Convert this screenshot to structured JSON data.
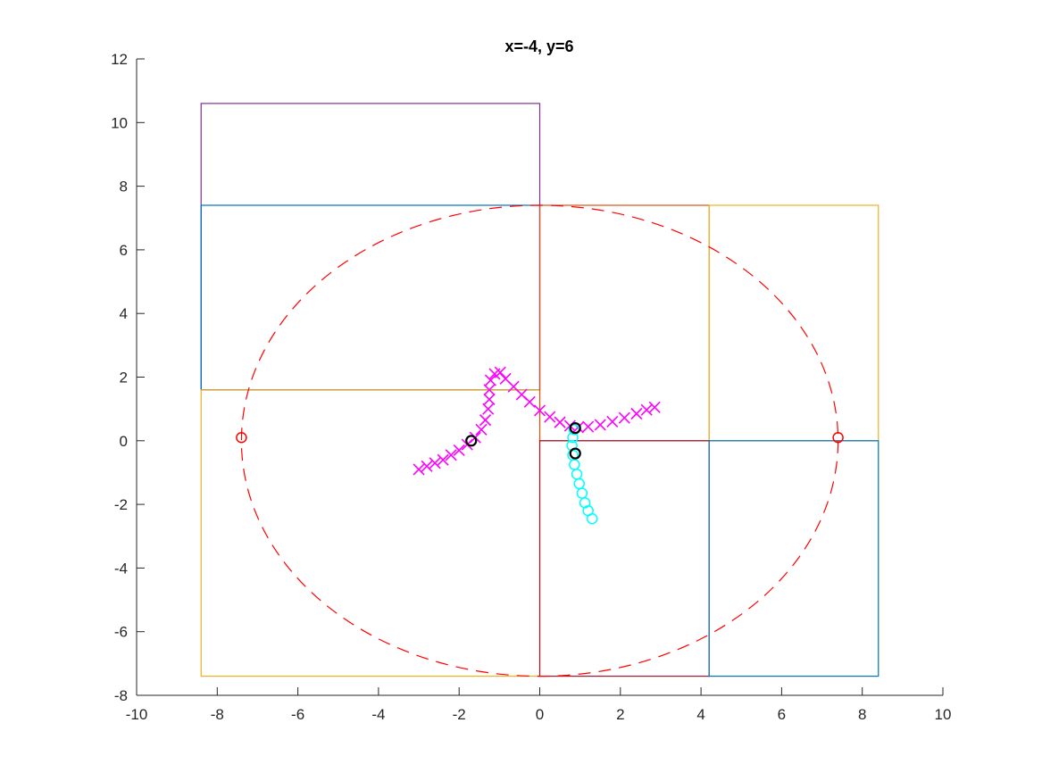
{
  "chart_data": {
    "type": "scatter",
    "title": "x=-4, y=6",
    "xlabel": "",
    "ylabel": "",
    "xlim": [
      -10,
      10
    ],
    "ylim": [
      -8,
      12
    ],
    "x_ticks": [
      -10,
      -8,
      -6,
      -4,
      -2,
      0,
      2,
      4,
      6,
      8,
      10
    ],
    "y_ticks": [
      -8,
      -6,
      -4,
      -2,
      0,
      2,
      4,
      6,
      8,
      10,
      12
    ],
    "x_tick_labels": [
      "-10",
      "-8",
      "-6",
      "-4",
      "-2",
      "0",
      "2",
      "4",
      "6",
      "8",
      "10"
    ],
    "y_tick_labels": [
      "-8",
      "-6",
      "-4",
      "-2",
      "0",
      "2",
      "4",
      "6",
      "8",
      "10",
      "12"
    ],
    "grid": false,
    "rectangles": [
      {
        "name": "purple-rect",
        "x0": -8.4,
        "y0": 1.6,
        "x1": 0,
        "y1": 10.6,
        "color": "#7E2F8E"
      },
      {
        "name": "blue-rect-top-left",
        "x0": -8.4,
        "y0": 1.6,
        "x1": 0,
        "y1": 7.4,
        "color": "#0072BD"
      },
      {
        "name": "yellow-rect-left",
        "x0": -8.4,
        "y0": -7.4,
        "x1": 0,
        "y1": 1.6,
        "color": "#EDB120"
      },
      {
        "name": "orange-rect-center",
        "x0": 0,
        "y0": 0,
        "x1": 4.2,
        "y1": 7.4,
        "color": "#D95319"
      },
      {
        "name": "yellow-rect-right",
        "x0": 4.2,
        "y0": 0,
        "x1": 8.4,
        "y1": 7.4,
        "color": "#EDB120"
      },
      {
        "name": "red-rect-bottom",
        "x0": 0,
        "y0": -7.4,
        "x1": 4.2,
        "y1": 0,
        "color": "#A2142F"
      },
      {
        "name": "blue-rect-bottom-right",
        "x0": 4.2,
        "y0": -7.4,
        "x1": 8.4,
        "y1": 0,
        "color": "#0072BD"
      }
    ],
    "ellipse": {
      "cx": 0,
      "cy": 0,
      "rx": 7.4,
      "ry": 7.4,
      "color": "#FF0000",
      "style": "dashed"
    },
    "series": [
      {
        "marker": "x",
        "color": "#FF00FF",
        "points": [
          [
            -3.0,
            -0.9
          ],
          [
            -2.8,
            -0.8
          ],
          [
            -2.6,
            -0.7
          ],
          [
            -2.4,
            -0.6
          ],
          [
            -2.2,
            -0.45
          ],
          [
            -2.0,
            -0.3
          ],
          [
            -1.8,
            -0.12
          ],
          [
            -1.6,
            0.1
          ],
          [
            -1.45,
            0.35
          ],
          [
            -1.35,
            0.65
          ],
          [
            -1.28,
            1.0
          ],
          [
            -1.25,
            1.3
          ],
          [
            -1.25,
            1.6
          ],
          [
            -1.22,
            1.9
          ],
          [
            -1.12,
            2.1
          ],
          [
            -0.98,
            2.15
          ],
          [
            -0.85,
            1.95
          ],
          [
            -0.65,
            1.7
          ],
          [
            -0.45,
            1.45
          ],
          [
            -0.25,
            1.22
          ],
          [
            0.0,
            0.95
          ],
          [
            0.25,
            0.75
          ],
          [
            0.5,
            0.58
          ],
          [
            0.75,
            0.47
          ],
          [
            0.95,
            0.42
          ],
          [
            1.2,
            0.44
          ],
          [
            1.5,
            0.5
          ],
          [
            1.8,
            0.6
          ],
          [
            2.1,
            0.72
          ],
          [
            2.4,
            0.85
          ],
          [
            2.65,
            0.97
          ],
          [
            2.85,
            1.05
          ]
        ]
      },
      {
        "marker": "o",
        "color": "#00FFFF",
        "points": [
          [
            0.85,
            0.35
          ],
          [
            0.82,
            0.1
          ],
          [
            0.8,
            -0.15
          ],
          [
            0.82,
            -0.45
          ],
          [
            0.86,
            -0.75
          ],
          [
            0.92,
            -1.05
          ],
          [
            0.98,
            -1.35
          ],
          [
            1.05,
            -1.65
          ],
          [
            1.12,
            -1.95
          ],
          [
            1.2,
            -2.2
          ],
          [
            1.3,
            -2.45
          ]
        ]
      },
      {
        "marker": "o",
        "color": "#FF0000",
        "points": [
          [
            -7.4,
            0.1
          ],
          [
            7.4,
            0.1
          ]
        ]
      },
      {
        "marker": "o",
        "color": "#000000",
        "points": [
          [
            -1.7,
            0.0
          ],
          [
            0.88,
            0.4
          ],
          [
            0.88,
            -0.4
          ]
        ]
      }
    ]
  }
}
